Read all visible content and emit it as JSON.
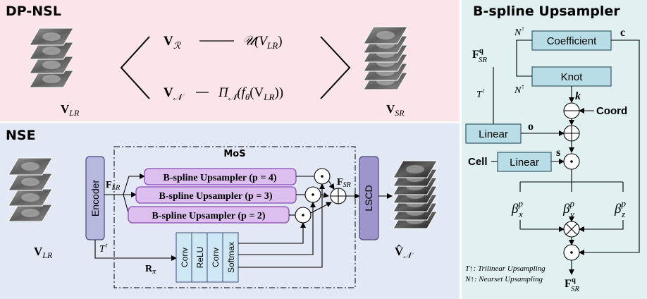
{
  "panels": {
    "dpnsl_title": "DP-NSL",
    "nse_title": "NSE",
    "bsu_title": "B-spline Upsampler",
    "mos_title": "MoS"
  },
  "dpnsl": {
    "v_r": "V",
    "v_r_sub": "ℛ",
    "u_expr": "𝒰(V",
    "u_expr_sub": "LR",
    "u_expr_end": ")",
    "v_n": "V",
    "v_n_sub": "𝒩",
    "pi_expr": "Π",
    "pi_sub": "𝒩",
    "pi_mid": "(f",
    "pi_theta": "θ",
    "pi_v": "(V",
    "pi_v_sub": "LR",
    "pi_end": "))",
    "left_label": "V",
    "left_label_sub": "LR",
    "right_label": "V",
    "right_label_sub": "SR"
  },
  "nse": {
    "encoder": "Encoder",
    "f_lr": "F",
    "f_lr_sub": "LR",
    "f_sr": "F",
    "f_sr_sub": "SR",
    "upsamplers": [
      "B-spline Upsampler (p = 4)",
      "B-spline Upsampler (p = 3)",
      "B-spline Upsampler (p = 2)"
    ],
    "lscd": "LSCD",
    "t_up": "T",
    "r_pi": "R",
    "r_pi_sub": "π",
    "gate_layers": [
      "Conv",
      "ReLU",
      "Conv",
      "Softmax"
    ],
    "input_label": "V",
    "input_label_sub": "LR",
    "output_label": "V̂",
    "output_label_sub": "𝒩"
  },
  "bsu": {
    "n_up": "N",
    "coefficient": "Coefficient",
    "knot": "Knot",
    "c": "c",
    "k": "k",
    "fq": "F",
    "fq_sup": "q",
    "fq_sub": "SR",
    "t_up": "T",
    "coord": "Coord",
    "linear1": "Linear",
    "o": "o",
    "cell": "Cell",
    "linear2": "Linear",
    "s": "s",
    "beta": "β",
    "beta_sup": "p",
    "beta_subs": [
      "x",
      "y",
      "z"
    ],
    "note1": "T↑: Trilinear Upsampling",
    "note2": "N↑: Nearset Upsampling"
  },
  "colors": {
    "dpnsl_bg": "#fbe4ea",
    "nse_bg": "#e3e8f5",
    "bsu_bg": "#e1f1f1",
    "upsampler_fill": "#dcbfef",
    "upsampler_stroke": "#8a4bb3",
    "lscd_fill": "#9e95cc",
    "encoder_fill": "#b7b9de",
    "gate_fill": "#cfe8f5",
    "bsu_box_fill": "#b8dde6"
  }
}
